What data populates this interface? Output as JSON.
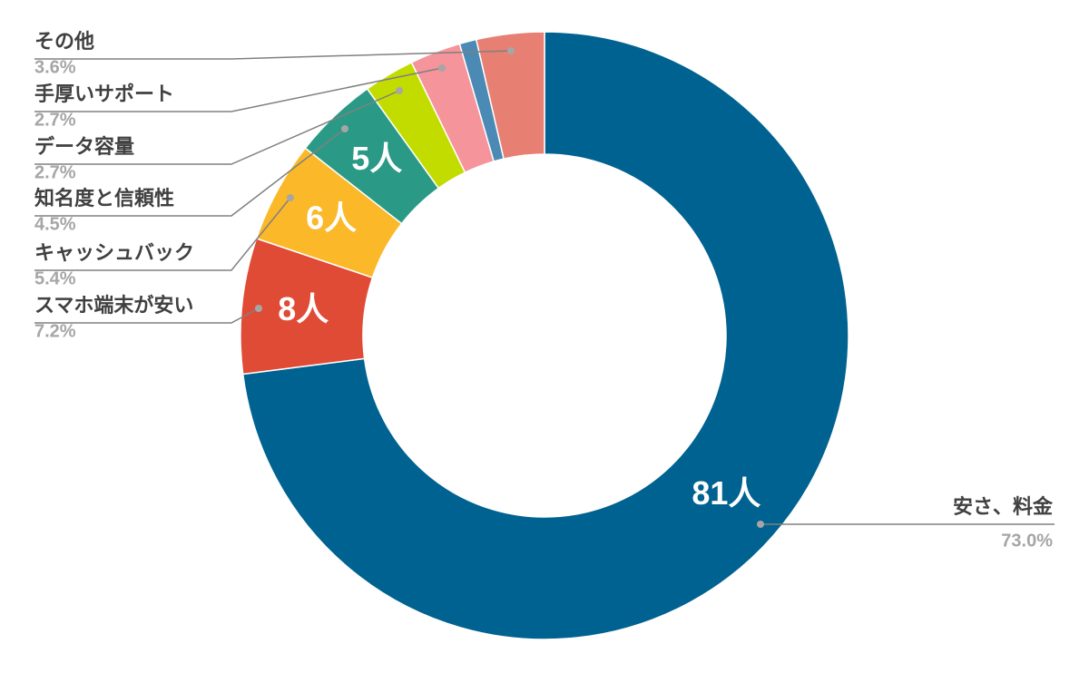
{
  "chart_data": {
    "type": "donut",
    "categories": [
      "安さ、料金",
      "スマホ端末が安い",
      "キャッシュバック",
      "知名度と信頼性",
      "データ容量",
      "手厚いサポート",
      null,
      "その他"
    ],
    "values": [
      73.0,
      7.2,
      5.4,
      4.5,
      2.7,
      2.7,
      0.9,
      3.6
    ],
    "value_labels": [
      "73.0%",
      "7.2%",
      "5.4%",
      "4.5%",
      "2.7%",
      "2.7%",
      null,
      "3.6%"
    ],
    "counts": [
      81,
      8,
      6,
      5,
      3,
      3,
      1,
      4
    ],
    "count_labels": [
      "81人",
      "8人",
      "6人",
      "5人",
      null,
      null,
      null,
      null
    ],
    "colors": [
      "#006290",
      "#e04b36",
      "#fbb829",
      "#2a9a86",
      "#c2dc00",
      "#f5949b",
      "#4a8ab5",
      "#e77f72"
    ]
  }
}
